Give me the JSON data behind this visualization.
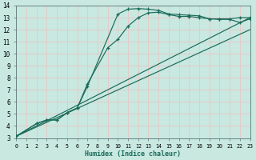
{
  "bg_color": "#c8e8e0",
  "grid_color": "#e8c8c8",
  "line_color": "#1a6b5a",
  "marker": "+",
  "xlabel": "Humidex (Indice chaleur)",
  "xlim": [
    0,
    23
  ],
  "ylim": [
    3,
    14
  ],
  "xticks": [
    0,
    1,
    2,
    3,
    4,
    5,
    6,
    7,
    8,
    9,
    10,
    11,
    12,
    13,
    14,
    15,
    16,
    17,
    18,
    19,
    20,
    21,
    22,
    23
  ],
  "yticks": [
    3,
    4,
    5,
    6,
    7,
    8,
    9,
    10,
    11,
    12,
    13,
    14
  ],
  "curve1_x": [
    0,
    2,
    3,
    4,
    5,
    6,
    7,
    10,
    11,
    12,
    13,
    14,
    15,
    16,
    17,
    18,
    19,
    20,
    21,
    22,
    23
  ],
  "curve1_y": [
    3.15,
    4.2,
    4.5,
    4.5,
    5.1,
    5.5,
    7.3,
    13.3,
    13.7,
    13.75,
    13.7,
    13.6,
    13.3,
    13.25,
    13.2,
    13.15,
    12.9,
    12.9,
    12.9,
    13.0,
    13.0
  ],
  "curve2_x": [
    0,
    2,
    3,
    4,
    5,
    6,
    7,
    9,
    10,
    11,
    12,
    13,
    14,
    15,
    16,
    17,
    18,
    19,
    20,
    21,
    22,
    23
  ],
  "curve2_y": [
    3.15,
    4.2,
    4.5,
    4.5,
    5.1,
    5.5,
    7.5,
    10.5,
    11.2,
    12.3,
    13.0,
    13.4,
    13.45,
    13.25,
    13.1,
    13.1,
    13.0,
    12.9,
    12.85,
    12.85,
    12.6,
    12.9
  ],
  "curve3_x": [
    0,
    23
  ],
  "curve3_y": [
    3.15,
    13.0
  ],
  "curve4_x": [
    0,
    23
  ],
  "curve4_y": [
    3.15,
    13.0
  ]
}
